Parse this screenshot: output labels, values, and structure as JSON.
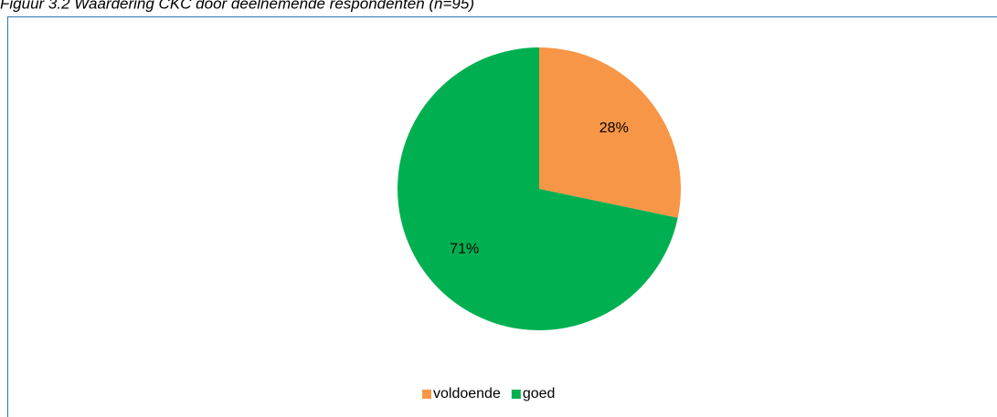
{
  "chart_data": {
    "type": "pie",
    "title": "Figuur 3.2 Waardering CKC door deelnemende respondenten (n=95)",
    "categories": [
      "voldoende",
      "goed"
    ],
    "values": [
      28,
      71
    ],
    "value_labels": [
      "28%",
      "71%"
    ],
    "colors": [
      "#f79646",
      "#00b050"
    ],
    "legend": "bottom"
  }
}
